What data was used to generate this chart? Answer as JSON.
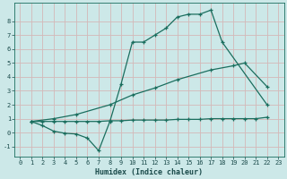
{
  "xlabel": "Humidex (Indice chaleur)",
  "bg_color": "#cce8e8",
  "grid_color": "#b0d0d0",
  "line_color": "#1a6e5e",
  "xlim": [
    -0.5,
    23.5
  ],
  "ylim": [
    -1.7,
    9.3
  ],
  "xticks": [
    0,
    1,
    2,
    3,
    4,
    5,
    6,
    7,
    8,
    9,
    10,
    11,
    12,
    13,
    14,
    15,
    16,
    17,
    18,
    19,
    20,
    21,
    22,
    23
  ],
  "yticks": [
    -1,
    0,
    1,
    2,
    3,
    4,
    5,
    6,
    7,
    8
  ],
  "line1_x": [
    1,
    2,
    3,
    4,
    5,
    6,
    7,
    8,
    9,
    10,
    11,
    12,
    13,
    14,
    15,
    16,
    17,
    18,
    22
  ],
  "line1_y": [
    0.8,
    0.5,
    0.1,
    -0.05,
    -0.1,
    -0.4,
    -1.3,
    0.8,
    3.5,
    6.5,
    6.5,
    7.0,
    7.5,
    8.3,
    8.5,
    8.5,
    8.8,
    6.5,
    2.0
  ],
  "line2_x": [
    1,
    3,
    5,
    8,
    10,
    12,
    14,
    17,
    19,
    20,
    22
  ],
  "line2_y": [
    0.8,
    1.0,
    1.3,
    2.0,
    2.7,
    3.2,
    3.8,
    4.5,
    4.8,
    5.0,
    3.3
  ],
  "line3_x": [
    1,
    2,
    3,
    4,
    5,
    6,
    7,
    8,
    9,
    10,
    11,
    12,
    13,
    14,
    15,
    16,
    17,
    18,
    19,
    20,
    21,
    22
  ],
  "line3_y": [
    0.8,
    0.8,
    0.8,
    0.8,
    0.8,
    0.8,
    0.8,
    0.85,
    0.85,
    0.9,
    0.9,
    0.9,
    0.9,
    0.95,
    0.95,
    0.95,
    1.0,
    1.0,
    1.0,
    1.0,
    1.0,
    1.1
  ]
}
